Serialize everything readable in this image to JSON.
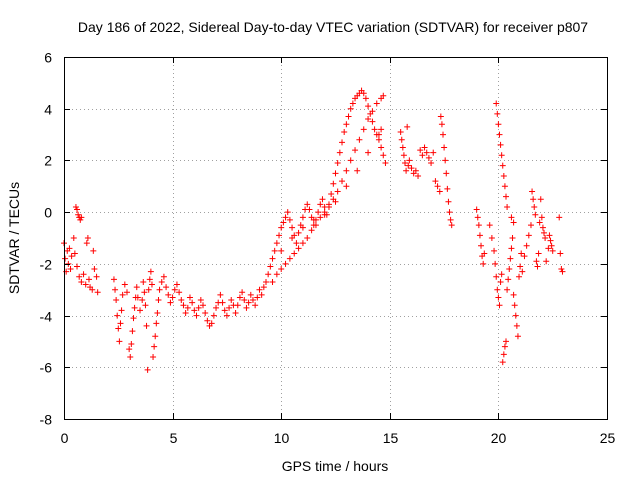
{
  "chart_data": {
    "type": "scatter",
    "title": "Day 186 of 2022, Sidereal Day-to-day VTEC variation (SDTVAR) for receiver p807",
    "xlabel": "GPS time / hours",
    "ylabel": "SDTVAR / TECUs",
    "xlim": [
      0,
      25
    ],
    "ylim": [
      -8,
      6
    ],
    "xticks": [
      "0",
      "5",
      "10",
      "15",
      "20",
      "25"
    ],
    "yticks": [
      "-8",
      "-6",
      "-4",
      "-2",
      "0",
      "2",
      "4",
      "6"
    ],
    "grid": true,
    "marker": "+",
    "color": "#ff0000",
    "series": [
      {
        "name": "SDTVAR",
        "points": [
          [
            0.0,
            -1.2
          ],
          [
            0.05,
            -1.8
          ],
          [
            0.1,
            -2.3
          ],
          [
            0.15,
            -1.5
          ],
          [
            0.2,
            -2.0
          ],
          [
            0.25,
            -1.4
          ],
          [
            0.3,
            -2.2
          ],
          [
            0.35,
            -1.7
          ],
          [
            0.45,
            -1.0
          ],
          [
            0.5,
            -1.6
          ],
          [
            0.55,
            0.2
          ],
          [
            0.6,
            0.1
          ],
          [
            0.65,
            -0.1
          ],
          [
            0.7,
            -0.2
          ],
          [
            0.75,
            -0.3
          ],
          [
            0.8,
            -0.2
          ],
          [
            0.6,
            -2.1
          ],
          [
            0.7,
            -2.5
          ],
          [
            0.8,
            -2.7
          ],
          [
            0.9,
            -2.4
          ],
          [
            1.0,
            -2.8
          ],
          [
            1.05,
            -1.2
          ],
          [
            1.1,
            -1.0
          ],
          [
            1.15,
            -2.6
          ],
          [
            1.2,
            -2.9
          ],
          [
            1.3,
            -3.0
          ],
          [
            1.35,
            -1.5
          ],
          [
            1.4,
            -2.2
          ],
          [
            1.5,
            -2.5
          ],
          [
            1.55,
            -3.1
          ],
          [
            2.3,
            -2.6
          ],
          [
            2.35,
            -3.0
          ],
          [
            2.4,
            -3.4
          ],
          [
            2.45,
            -4.0
          ],
          [
            2.5,
            -4.5
          ],
          [
            2.55,
            -5.0
          ],
          [
            2.6,
            -4.3
          ],
          [
            2.65,
            -3.8
          ],
          [
            2.7,
            -3.2
          ],
          [
            2.8,
            -2.8
          ],
          [
            2.9,
            -3.1
          ],
          [
            3.0,
            -5.3
          ],
          [
            3.05,
            -5.6
          ],
          [
            3.1,
            -5.1
          ],
          [
            3.15,
            -4.6
          ],
          [
            3.2,
            -4.1
          ],
          [
            3.25,
            -3.7
          ],
          [
            3.3,
            -3.3
          ],
          [
            3.35,
            -2.9
          ],
          [
            3.4,
            -3.3
          ],
          [
            3.5,
            -3.8
          ],
          [
            3.6,
            -3.4
          ],
          [
            3.65,
            -2.7
          ],
          [
            3.7,
            -3.1
          ],
          [
            3.75,
            -3.6
          ],
          [
            3.8,
            -4.4
          ],
          [
            3.85,
            -6.1
          ],
          [
            3.9,
            -3.0
          ],
          [
            3.95,
            -2.6
          ],
          [
            4.0,
            -2.3
          ],
          [
            4.05,
            -2.8
          ],
          [
            4.1,
            -5.6
          ],
          [
            4.15,
            -5.2
          ],
          [
            4.2,
            -4.8
          ],
          [
            4.25,
            -4.3
          ],
          [
            4.3,
            -3.9
          ],
          [
            4.35,
            -3.4
          ],
          [
            4.4,
            -3.0
          ],
          [
            4.5,
            -2.7
          ],
          [
            4.6,
            -2.5
          ],
          [
            4.7,
            -2.9
          ],
          [
            4.8,
            -3.2
          ],
          [
            4.9,
            -3.5
          ],
          [
            5.0,
            -3.3
          ],
          [
            5.1,
            -3.0
          ],
          [
            5.2,
            -2.8
          ],
          [
            5.3,
            -3.1
          ],
          [
            5.4,
            -3.4
          ],
          [
            5.5,
            -3.6
          ],
          [
            5.6,
            -3.9
          ],
          [
            5.7,
            -3.7
          ],
          [
            5.8,
            -3.3
          ],
          [
            5.9,
            -3.5
          ],
          [
            6.0,
            -3.8
          ],
          [
            6.1,
            -4.0
          ],
          [
            6.2,
            -3.7
          ],
          [
            6.3,
            -3.4
          ],
          [
            6.4,
            -3.6
          ],
          [
            6.5,
            -3.9
          ],
          [
            6.6,
            -4.2
          ],
          [
            6.7,
            -4.4
          ],
          [
            6.8,
            -4.3
          ],
          [
            6.9,
            -4.0
          ],
          [
            7.0,
            -3.7
          ],
          [
            7.1,
            -3.5
          ],
          [
            7.2,
            -3.2
          ],
          [
            7.3,
            -3.5
          ],
          [
            7.4,
            -3.8
          ],
          [
            7.5,
            -4.0
          ],
          [
            7.6,
            -3.7
          ],
          [
            7.7,
            -3.4
          ],
          [
            7.8,
            -3.6
          ],
          [
            7.9,
            -3.9
          ],
          [
            8.0,
            -3.6
          ],
          [
            8.1,
            -3.3
          ],
          [
            8.2,
            -3.1
          ],
          [
            8.3,
            -3.4
          ],
          [
            8.4,
            -3.7
          ],
          [
            8.5,
            -3.5
          ],
          [
            8.6,
            -3.2
          ],
          [
            8.7,
            -3.4
          ],
          [
            8.8,
            -3.6
          ],
          [
            8.9,
            -3.3
          ],
          [
            9.0,
            -3.0
          ],
          [
            9.1,
            -3.2
          ],
          [
            9.2,
            -2.9
          ],
          [
            9.3,
            -2.7
          ],
          [
            9.4,
            -2.4
          ],
          [
            9.5,
            -2.1
          ],
          [
            9.6,
            -1.8
          ],
          [
            9.7,
            -1.5
          ],
          [
            9.8,
            -1.2
          ],
          [
            9.9,
            -0.9
          ],
          [
            10.0,
            -0.6
          ],
          [
            10.1,
            -0.4
          ],
          [
            10.2,
            -0.2
          ],
          [
            10.3,
            0.0
          ],
          [
            10.4,
            -0.3
          ],
          [
            10.5,
            -0.6
          ],
          [
            10.6,
            -0.9
          ],
          [
            10.7,
            -1.2
          ],
          [
            10.8,
            -0.8
          ],
          [
            10.9,
            -0.5
          ],
          [
            11.0,
            -0.2
          ],
          [
            11.1,
            0.1
          ],
          [
            11.2,
            0.3
          ],
          [
            11.3,
            0.1
          ],
          [
            11.4,
            -0.2
          ],
          [
            11.5,
            -0.5
          ],
          [
            11.6,
            -0.3
          ],
          [
            11.7,
            0.0
          ],
          [
            11.8,
            0.3
          ],
          [
            11.9,
            0.5
          ],
          [
            12.0,
            0.2
          ],
          [
            12.1,
            -0.1
          ],
          [
            12.2,
            0.3
          ],
          [
            12.3,
            0.7
          ],
          [
            12.4,
            1.1
          ],
          [
            12.5,
            1.5
          ],
          [
            12.6,
            1.9
          ],
          [
            12.7,
            2.3
          ],
          [
            12.8,
            2.7
          ],
          [
            12.9,
            3.1
          ],
          [
            13.0,
            3.4
          ],
          [
            13.1,
            3.7
          ],
          [
            13.2,
            4.0
          ],
          [
            13.3,
            4.2
          ],
          [
            13.4,
            4.4
          ],
          [
            13.5,
            4.5
          ],
          [
            13.6,
            4.6
          ],
          [
            13.7,
            4.7
          ],
          [
            13.8,
            4.6
          ],
          [
            13.9,
            4.4
          ],
          [
            14.0,
            4.1
          ],
          [
            14.1,
            3.8
          ],
          [
            14.2,
            3.5
          ],
          [
            14.3,
            3.2
          ],
          [
            14.4,
            3.0
          ],
          [
            14.5,
            2.8
          ],
          [
            14.6,
            2.5
          ],
          [
            14.7,
            2.2
          ],
          [
            14.8,
            1.9
          ],
          [
            9.6,
            -2.7
          ],
          [
            9.8,
            -2.4
          ],
          [
            10.0,
            -2.2
          ],
          [
            10.2,
            -2.0
          ],
          [
            10.4,
            -1.8
          ],
          [
            10.6,
            -1.6
          ],
          [
            10.8,
            -1.4
          ],
          [
            11.0,
            -1.2
          ],
          [
            11.2,
            -1.0
          ],
          [
            11.4,
            -0.7
          ],
          [
            11.6,
            -0.5
          ],
          [
            11.8,
            -0.2
          ],
          [
            12.0,
            0.0
          ],
          [
            12.2,
            0.2
          ],
          [
            12.4,
            0.5
          ],
          [
            12.6,
            0.8
          ],
          [
            12.8,
            1.2
          ],
          [
            13.0,
            1.6
          ],
          [
            13.2,
            2.0
          ],
          [
            13.4,
            2.4
          ],
          [
            13.6,
            2.8
          ],
          [
            13.8,
            3.2
          ],
          [
            14.0,
            3.6
          ],
          [
            14.2,
            3.9
          ],
          [
            14.4,
            4.2
          ],
          [
            14.6,
            4.4
          ],
          [
            14.7,
            4.5
          ],
          [
            10.0,
            -1.5
          ],
          [
            10.5,
            -1.0
          ],
          [
            11.0,
            -0.6
          ],
          [
            11.5,
            -0.3
          ],
          [
            12.0,
            -0.1
          ],
          [
            12.5,
            0.4
          ],
          [
            13.0,
            1.0
          ],
          [
            13.5,
            1.6
          ],
          [
            14.0,
            2.3
          ],
          [
            14.5,
            3.0
          ],
          [
            14.6,
            3.2
          ],
          [
            15.5,
            3.1
          ],
          [
            15.55,
            2.8
          ],
          [
            15.6,
            2.5
          ],
          [
            15.65,
            2.2
          ],
          [
            15.7,
            1.9
          ],
          [
            15.75,
            1.6
          ],
          [
            15.8,
            3.3
          ],
          [
            15.85,
            1.8
          ],
          [
            15.9,
            2.0
          ],
          [
            16.0,
            1.7
          ],
          [
            16.1,
            1.5
          ],
          [
            16.2,
            1.6
          ],
          [
            16.3,
            1.4
          ],
          [
            16.4,
            2.4
          ],
          [
            16.5,
            2.2
          ],
          [
            16.6,
            2.5
          ],
          [
            16.7,
            2.3
          ],
          [
            16.8,
            2.1
          ],
          [
            16.9,
            1.9
          ],
          [
            17.0,
            2.3
          ],
          [
            17.1,
            1.2
          ],
          [
            17.2,
            1.0
          ],
          [
            17.3,
            0.8
          ],
          [
            17.35,
            3.7
          ],
          [
            17.4,
            3.4
          ],
          [
            17.45,
            3.0
          ],
          [
            17.5,
            2.5
          ],
          [
            17.55,
            2.0
          ],
          [
            17.6,
            1.5
          ],
          [
            17.65,
            0.9
          ],
          [
            17.7,
            0.4
          ],
          [
            17.75,
            0.0
          ],
          [
            17.8,
            -0.3
          ],
          [
            17.85,
            -0.5
          ],
          [
            19.9,
            4.2
          ],
          [
            19.95,
            3.8
          ],
          [
            20.0,
            3.4
          ],
          [
            20.05,
            3.0
          ],
          [
            20.1,
            2.6
          ],
          [
            20.15,
            2.2
          ],
          [
            20.2,
            1.8
          ],
          [
            20.25,
            1.4
          ],
          [
            20.3,
            1.0
          ],
          [
            20.35,
            0.6
          ],
          [
            20.4,
            0.2
          ],
          [
            19.0,
            0.1
          ],
          [
            19.05,
            -0.2
          ],
          [
            19.1,
            -0.5
          ],
          [
            19.15,
            -0.9
          ],
          [
            19.2,
            -1.3
          ],
          [
            19.25,
            -1.7
          ],
          [
            19.3,
            -2.0
          ],
          [
            19.35,
            -1.6
          ],
          [
            19.6,
            -0.5
          ],
          [
            19.7,
            -1.0
          ],
          [
            19.8,
            -1.5
          ],
          [
            19.85,
            -2.0
          ],
          [
            19.9,
            -2.5
          ],
          [
            19.95,
            -3.0
          ],
          [
            20.0,
            -3.3
          ],
          [
            20.05,
            -3.6
          ],
          [
            20.1,
            -2.7
          ],
          [
            20.15,
            -2.4
          ],
          [
            20.2,
            -5.8
          ],
          [
            20.25,
            -5.5
          ],
          [
            20.3,
            -5.2
          ],
          [
            20.35,
            -5.0
          ],
          [
            20.4,
            -3.0
          ],
          [
            20.45,
            -2.6
          ],
          [
            20.5,
            -2.2
          ],
          [
            20.55,
            -1.8
          ],
          [
            20.6,
            -1.4
          ],
          [
            20.65,
            -1.0
          ],
          [
            20.7,
            -3.2
          ],
          [
            20.75,
            -3.6
          ],
          [
            20.8,
            -4.0
          ],
          [
            20.85,
            -4.4
          ],
          [
            20.9,
            -4.8
          ],
          [
            20.95,
            -2.5
          ],
          [
            21.0,
            -2.1
          ],
          [
            21.05,
            -1.6
          ],
          [
            20.6,
            -0.2
          ],
          [
            20.7,
            -0.4
          ],
          [
            21.1,
            -2.3
          ],
          [
            21.2,
            -1.7
          ],
          [
            21.3,
            -1.3
          ],
          [
            21.4,
            -0.9
          ],
          [
            21.5,
            -0.5
          ],
          [
            21.55,
            0.8
          ],
          [
            21.6,
            0.5
          ],
          [
            21.65,
            0.2
          ],
          [
            21.7,
            -0.1
          ],
          [
            21.75,
            -1.9
          ],
          [
            21.8,
            -2.1
          ],
          [
            21.85,
            -1.6
          ],
          [
            21.9,
            -0.4
          ],
          [
            21.95,
            0.5
          ],
          [
            22.0,
            -0.2
          ],
          [
            22.05,
            -0.6
          ],
          [
            22.1,
            -0.8
          ],
          [
            22.15,
            -1.0
          ],
          [
            22.2,
            -1.9
          ],
          [
            22.3,
            -1.4
          ],
          [
            22.35,
            -0.9
          ],
          [
            22.4,
            -1.1
          ],
          [
            22.45,
            -1.3
          ],
          [
            22.5,
            -1.5
          ],
          [
            22.8,
            -0.2
          ],
          [
            22.85,
            -1.6
          ],
          [
            22.9,
            -2.2
          ],
          [
            22.95,
            -2.3
          ]
        ]
      }
    ]
  }
}
